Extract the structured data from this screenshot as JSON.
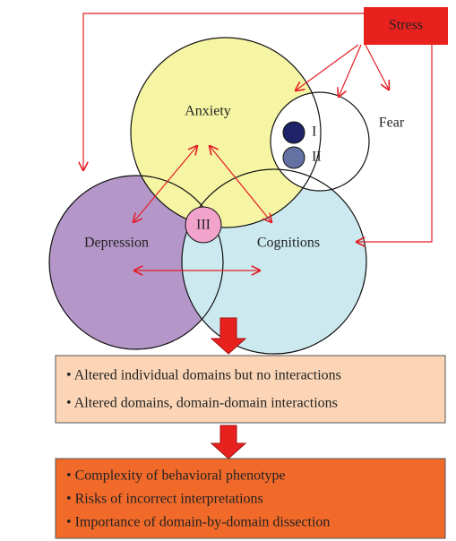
{
  "stress": "Stress",
  "domains": {
    "anxiety": "Anxiety",
    "fear": "Fear",
    "depression": "Depression",
    "cognitions": "Cognitions"
  },
  "markers": {
    "one": "I",
    "two": "II",
    "three": "III"
  },
  "box1": {
    "items": [
      "• Altered individual domains but no interactions",
      "• Altered domains, domain-domain interactions"
    ]
  },
  "box2": {
    "items": [
      "• Complexity of behavioral phenotype",
      "• Risks of incorrect interpretations",
      "• Importance of domain-by-domain dissection"
    ]
  }
}
